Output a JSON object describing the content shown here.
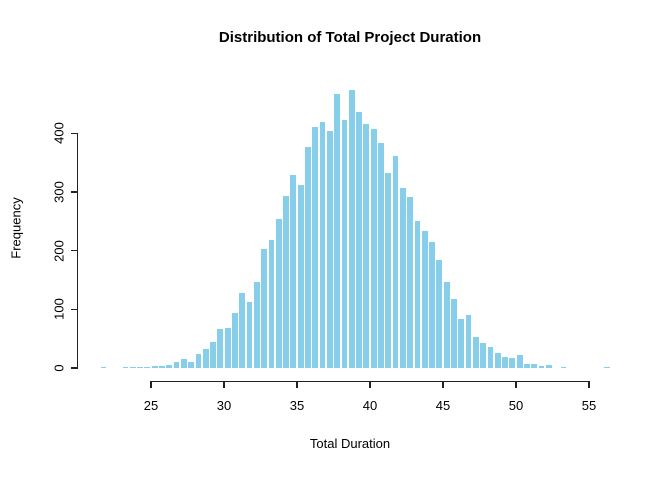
{
  "title": "Distribution of Total Project Duration",
  "colors": {
    "bar_fill": "#87CEEB",
    "bar_border": "#FFFFFF",
    "axis": "#222222",
    "text": "#000000",
    "background": "#FFFFFF"
  },
  "chart_data": {
    "type": "bar",
    "subtype": "histogram",
    "title": "Distribution of Total Project Duration",
    "xlabel": "Total Duration",
    "ylabel": "Frequency",
    "bin_start": 21.5,
    "bin_width": 0.5,
    "counts": [
      1,
      0,
      0,
      1,
      1,
      1,
      2,
      3,
      4,
      5,
      10,
      16,
      11,
      24,
      32,
      44,
      66,
      69,
      94,
      127,
      113,
      146,
      203,
      219,
      254,
      293,
      329,
      312,
      377,
      410,
      420,
      404,
      467,
      422,
      473,
      437,
      416,
      407,
      383,
      333,
      362,
      306,
      291,
      251,
      234,
      214,
      184,
      146,
      117,
      83,
      90,
      52,
      43,
      35,
      25,
      19,
      17,
      23,
      7,
      6,
      3,
      5,
      0,
      2,
      0,
      0,
      0,
      0,
      0,
      1
    ],
    "x_ticks": [
      25,
      30,
      35,
      40,
      45,
      50,
      55
    ],
    "y_ticks": [
      0,
      100,
      200,
      300,
      400
    ],
    "xlim": [
      25,
      55
    ],
    "ylim": [
      0,
      400
    ],
    "grid": false,
    "legend": "none"
  }
}
